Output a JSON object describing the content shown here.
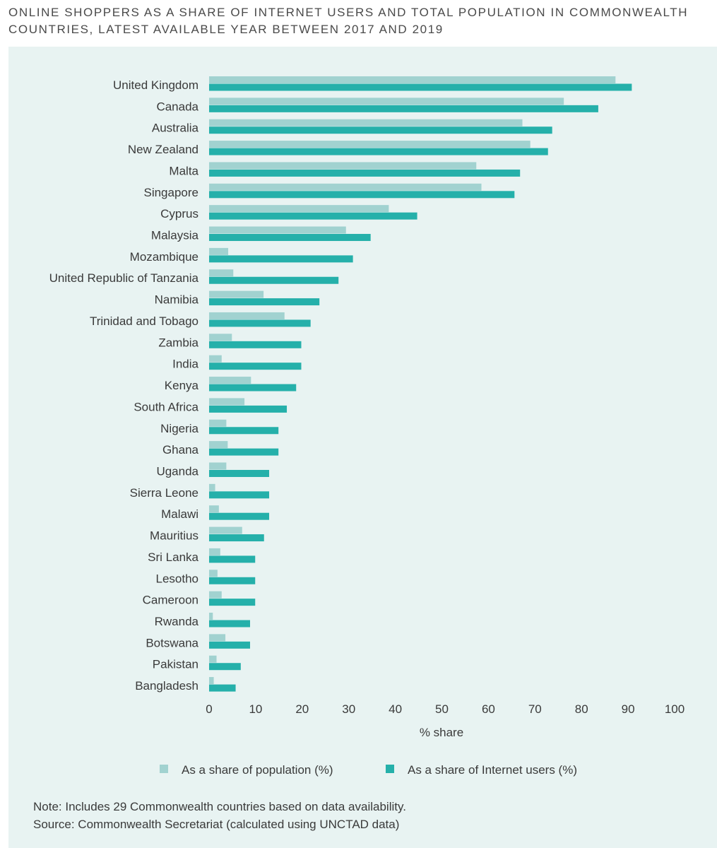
{
  "title": "ONLINE SHOPPERS AS A SHARE OF INTERNET USERS AND TOTAL POPULATION IN COMMONWEALTH COUNTRIES, LATEST AVAILABLE YEAR BETWEEN 2017 AND 2019",
  "chart_data": {
    "type": "bar",
    "orientation": "horizontal",
    "categories": [
      "United Kingdom",
      "Canada",
      "Australia",
      "New Zealand",
      "Malta",
      "Singapore",
      "Cyprus",
      "Malaysia",
      "Mozambique",
      "United Republic of Tanzania",
      "Namibia",
      "Trinidad and Tobago",
      "Zambia",
      "India",
      "Kenya",
      "South Africa",
      "Nigeria",
      "Ghana",
      "Uganda",
      "Sierra Leone",
      "Malawi",
      "Mauritius",
      "Sri Lanka",
      "Lesotho",
      "Cameroon",
      "Rwanda",
      "Botswana",
      "Pakistan",
      "Bangladesh"
    ],
    "series": [
      {
        "name": "As a share of population (%)",
        "color": "#a1d2d0",
        "values": [
          87.3,
          76.2,
          67.3,
          69.0,
          57.4,
          58.5,
          38.6,
          29.4,
          4.1,
          5.2,
          11.7,
          16.2,
          4.9,
          2.7,
          9.0,
          7.6,
          3.7,
          4.0,
          3.7,
          1.3,
          2.1,
          7.1,
          2.4,
          1.8,
          2.7,
          0.8,
          3.5,
          1.6,
          1.0
        ]
      },
      {
        "name": "As a share of Internet users (%)",
        "color": "#25b0aa",
        "values": [
          90.8,
          83.6,
          73.7,
          72.8,
          66.8,
          65.6,
          44.7,
          34.7,
          30.9,
          27.8,
          23.7,
          21.8,
          19.8,
          19.8,
          18.7,
          16.7,
          14.9,
          14.9,
          12.9,
          12.9,
          12.9,
          11.8,
          9.9,
          9.9,
          9.9,
          8.8,
          8.8,
          6.8,
          5.7
        ]
      }
    ],
    "xlabel": "% share",
    "xlim": [
      0,
      100
    ],
    "xticks": [
      "0",
      "10",
      "20",
      "30",
      "40",
      "50",
      "60",
      "70",
      "80",
      "90",
      "100"
    ],
    "grid": false,
    "legend": "bottom"
  },
  "notes": {
    "note": "Note: Includes 29 Commonwealth countries based on data availability.",
    "source": "Source: Commonwealth Secretariat (calculated using UNCTAD data)"
  }
}
